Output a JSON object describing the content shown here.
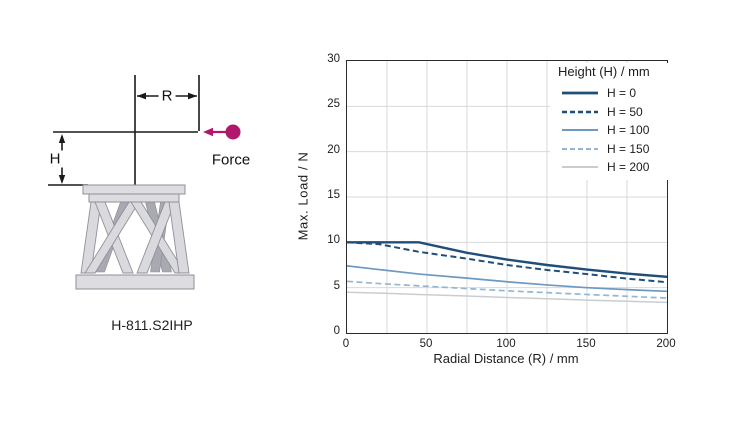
{
  "diagram": {
    "model_label": "H-811.S2IHP",
    "force_label": "Force",
    "r_label": "R",
    "h_label": "H",
    "force_color": "#b1186b",
    "dimension_line_color": "#1a1a1a",
    "platform_fill": "#dcdce1",
    "platform_stroke": "#8f8f97",
    "leg_light_fill": "#d9d9de",
    "leg_dark_fill": "#a9a9b1"
  },
  "chart_data": {
    "type": "line",
    "title": "",
    "xlabel": "Radial Distance (R) / mm",
    "ylabel": "Max. Load / N",
    "xlim": [
      0,
      200
    ],
    "ylim": [
      0,
      30
    ],
    "xticks": [
      0,
      50,
      100,
      150,
      200
    ],
    "yticks": [
      0,
      5,
      10,
      15,
      20,
      25,
      30
    ],
    "x_grid_interval": 25,
    "y_grid_interval": 5,
    "grid": true,
    "grid_color": "#d9d9d9",
    "axis_color": "#2b2b2b",
    "legend_title": "Height (H) / mm",
    "legend_position": "top-right",
    "x": [
      0,
      20,
      45,
      75,
      100,
      125,
      150,
      175,
      200
    ],
    "series": [
      {
        "name": "H = 0",
        "color": "#1f4e79",
        "dash": "solid",
        "width": 2.4,
        "values": [
          10.0,
          10.0,
          10.0,
          8.85,
          8.1,
          7.5,
          7.0,
          6.55,
          6.2
        ]
      },
      {
        "name": "H = 50",
        "color": "#1f4e79",
        "dash": "dashed",
        "width": 2.0,
        "values": [
          10.0,
          9.8,
          8.95,
          8.2,
          7.5,
          6.95,
          6.5,
          6.0,
          5.6
        ]
      },
      {
        "name": "H = 100",
        "color": "#6b99c2",
        "dash": "solid",
        "width": 1.7,
        "values": [
          7.4,
          7.0,
          6.5,
          6.05,
          5.65,
          5.3,
          5.0,
          4.78,
          4.6
        ]
      },
      {
        "name": "H = 150",
        "color": "#94b6d4",
        "dash": "dashed",
        "width": 1.7,
        "values": [
          5.7,
          5.45,
          5.2,
          4.9,
          4.65,
          4.45,
          4.25,
          4.05,
          3.85
        ]
      },
      {
        "name": "H = 200",
        "color": "#c9cdd2",
        "dash": "solid",
        "width": 1.5,
        "values": [
          4.5,
          4.4,
          4.25,
          4.08,
          3.92,
          3.78,
          3.63,
          3.5,
          3.38
        ]
      }
    ]
  }
}
